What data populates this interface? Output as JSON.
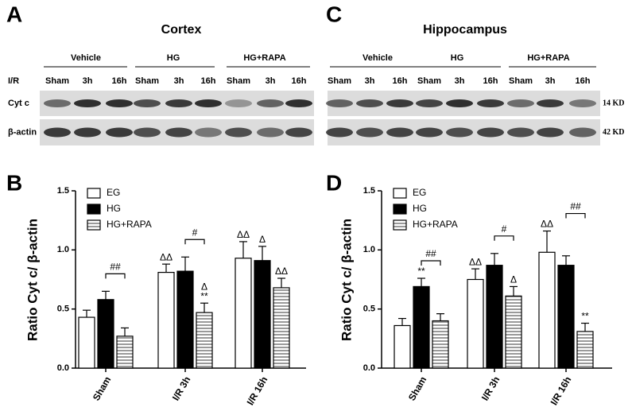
{
  "blots": [
    {
      "letter": "A",
      "title": "Cortex",
      "groups": [
        "Vehicle",
        "HG",
        "HG+RAPA"
      ],
      "lanes": [
        "Sham",
        "3h",
        "16h",
        "Sham",
        "3h",
        "16h",
        "Sham",
        "3h",
        "16h"
      ],
      "lane_header": "I/R",
      "rows": [
        "Cyt c",
        "β-actin"
      ]
    },
    {
      "letter": "C",
      "title": "Hippocampus",
      "groups": [
        "Vehicle",
        "HG",
        "HG+RAPA"
      ],
      "lanes": [
        "Sham",
        "3h",
        "16h",
        "Sham",
        "3h",
        "16h",
        "Sham",
        "3h",
        "16h"
      ],
      "sizes": [
        "14 KD",
        "42 KD"
      ]
    }
  ],
  "chart_data": [
    {
      "type": "bar",
      "letter": "B",
      "ylabel": "Ratio  Cyt c/ β-actin",
      "categories": [
        "Sham",
        "I/R 3h",
        "I/R 16h"
      ],
      "ylim": [
        0,
        1.5
      ],
      "yticks": [
        {
          "value": 0,
          "label": "0.0"
        },
        0.5,
        {
          "value": 1,
          "label": "1.0"
        },
        1.5
      ],
      "series": [
        {
          "name": "EG",
          "color": "#ffffff",
          "values": [
            0.43,
            0.81,
            0.93
          ],
          "errors": [
            0.06,
            0.07,
            0.14
          ],
          "labels": [
            null,
            "ΔΔ",
            "ΔΔ"
          ]
        },
        {
          "name": "HG",
          "color": "#000000",
          "values": [
            0.58,
            0.82,
            0.91
          ],
          "errors": [
            0.07,
            0.12,
            0.12
          ],
          "labels": [
            null,
            null,
            "Δ"
          ]
        },
        {
          "name": "HG+RAPA",
          "color": "#ffffff",
          "hatch": "horizontal",
          "values": [
            0.27,
            0.47,
            0.68
          ],
          "errors": [
            0.07,
            0.08,
            0.08
          ],
          "labels": [
            null,
            [
              "Δ",
              "**"
            ],
            "ΔΔ"
          ]
        }
      ],
      "brackets": [
        "##",
        "#",
        null
      ]
    },
    {
      "type": "bar",
      "letter": "D",
      "ylabel": "Ratio  Cyt c/ β-actin",
      "categories": [
        "Sham",
        "I/R 3h",
        "I/R 16h"
      ],
      "ylim": [
        0,
        1.5
      ],
      "yticks": [
        {
          "value": 0,
          "label": "0.0"
        },
        0.5,
        {
          "value": 1,
          "label": "1.0"
        },
        1.5
      ],
      "series": [
        {
          "name": "EG",
          "color": "#ffffff",
          "values": [
            0.36,
            0.75,
            0.98
          ],
          "errors": [
            0.06,
            0.09,
            0.18
          ],
          "labels": [
            null,
            "ΔΔ",
            "ΔΔ"
          ]
        },
        {
          "name": "HG",
          "color": "#000000",
          "values": [
            0.69,
            0.87,
            0.87
          ],
          "errors": [
            0.07,
            0.1,
            0.08
          ],
          "labels": [
            "**",
            null,
            null
          ]
        },
        {
          "name": "HG+RAPA",
          "color": "#ffffff",
          "hatch": "horizontal",
          "values": [
            0.4,
            0.61,
            0.31
          ],
          "errors": [
            0.06,
            0.08,
            0.07
          ],
          "labels": [
            null,
            "Δ",
            "**"
          ]
        }
      ],
      "brackets": [
        "##",
        "#",
        "##"
      ]
    }
  ]
}
